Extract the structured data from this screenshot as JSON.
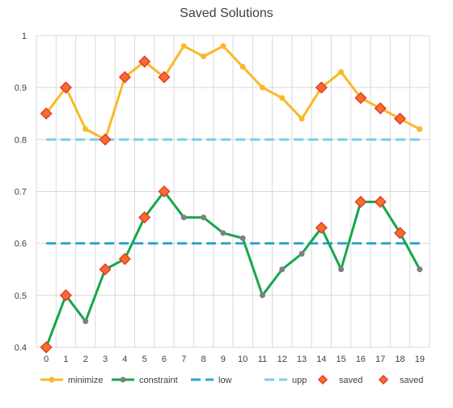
{
  "chart_data": {
    "type": "line",
    "title": "Saved Solutions",
    "x": [
      0,
      1,
      2,
      3,
      4,
      5,
      6,
      7,
      8,
      9,
      10,
      11,
      12,
      13,
      14,
      15,
      16,
      17,
      18,
      19
    ],
    "xlim": [
      0,
      19
    ],
    "ylim": [
      0.4,
      1.0
    ],
    "yticks": [
      0.4,
      0.5,
      0.6,
      0.7,
      0.8,
      0.9,
      1.0
    ],
    "ytick_labels": [
      "0.4",
      "0.5",
      "0.6",
      "0.7",
      "0.8",
      "0.9",
      "1"
    ],
    "grid": true,
    "legend_position": "bottom",
    "series": [
      {
        "name": "minimize",
        "kind": "line-marker",
        "color": "#FBB829",
        "values": [
          0.85,
          0.9,
          0.82,
          0.8,
          0.92,
          0.95,
          0.92,
          0.98,
          0.96,
          0.98,
          0.94,
          0.9,
          0.88,
          0.84,
          0.9,
          0.93,
          0.88,
          0.86,
          0.84,
          0.82
        ]
      },
      {
        "name": "constraint",
        "kind": "line-marker",
        "color": "#16A64C",
        "marker_color": "#808080",
        "values": [
          0.4,
          0.5,
          0.45,
          0.55,
          0.57,
          0.65,
          0.7,
          0.65,
          0.65,
          0.62,
          0.61,
          0.5,
          0.55,
          0.58,
          0.63,
          0.55,
          0.68,
          0.68,
          0.62,
          0.55
        ]
      },
      {
        "name": "low",
        "kind": "dashed-line",
        "color": "#2EA3DF",
        "values": [
          0.6,
          0.6,
          0.6,
          0.6,
          0.6,
          0.6,
          0.6,
          0.6,
          0.6,
          0.6,
          0.6,
          0.6,
          0.6,
          0.6,
          0.6,
          0.6,
          0.6,
          0.6,
          0.6,
          0.6
        ]
      },
      {
        "name": "upp",
        "kind": "dashed-line",
        "color": "#7DCDEF",
        "values": [
          0.8,
          0.8,
          0.8,
          0.8,
          0.8,
          0.8,
          0.8,
          0.8,
          0.8,
          0.8,
          0.8,
          0.8,
          0.8,
          0.8,
          0.8,
          0.8,
          0.8,
          0.8,
          0.8,
          0.8
        ]
      },
      {
        "name": "saved",
        "kind": "diamond-marker",
        "color": "#F46F2B",
        "edge_color": "#E63B2E",
        "points": [
          [
            0,
            0.85
          ],
          [
            1,
            0.9
          ],
          [
            3,
            0.8
          ],
          [
            4,
            0.92
          ],
          [
            5,
            0.95
          ],
          [
            6,
            0.92
          ],
          [
            14,
            0.9
          ],
          [
            16,
            0.88
          ],
          [
            17,
            0.86
          ],
          [
            18,
            0.84
          ]
        ]
      },
      {
        "name": "saved",
        "kind": "diamond-marker",
        "color": "#F46F2B",
        "edge_color": "#E63B2E",
        "points": [
          [
            0,
            0.4
          ],
          [
            1,
            0.5
          ],
          [
            3,
            0.55
          ],
          [
            4,
            0.57
          ],
          [
            5,
            0.65
          ],
          [
            6,
            0.7
          ],
          [
            14,
            0.63
          ],
          [
            16,
            0.68
          ],
          [
            17,
            0.68
          ],
          [
            18,
            0.62
          ]
        ]
      }
    ]
  }
}
